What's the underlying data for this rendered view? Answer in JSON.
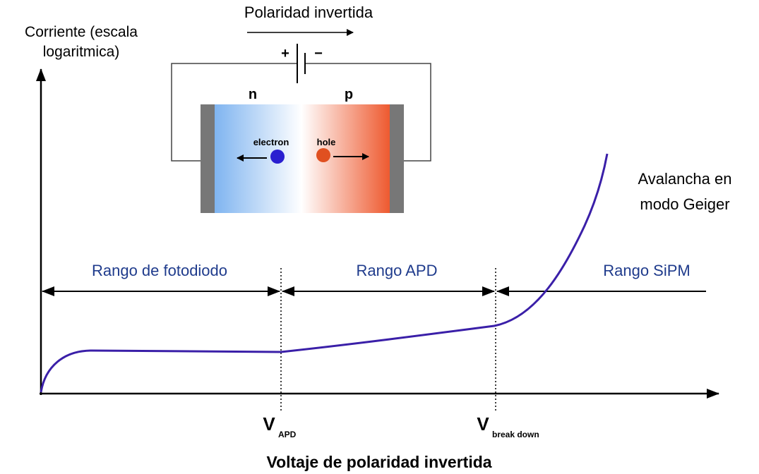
{
  "title": "Polaridad invertida",
  "y_axis_label": [
    "Corriente (escala",
    "logaritmica)"
  ],
  "x_axis_label": "Voltaje de polaridad invertida",
  "battery": {
    "plus": "+",
    "minus": "−"
  },
  "diode": {
    "n": "n",
    "p": "p",
    "electron": "electron",
    "hole": "hole"
  },
  "annotation": [
    "Avalancha en",
    "modo Geiger"
  ],
  "ranges": [
    "Rango de fotodiodo",
    "Rango APD",
    "Rango SiPM"
  ],
  "markers": [
    {
      "symbol": "V",
      "subscript": "APD"
    },
    {
      "symbol": "V",
      "subscript": "break down"
    }
  ]
}
